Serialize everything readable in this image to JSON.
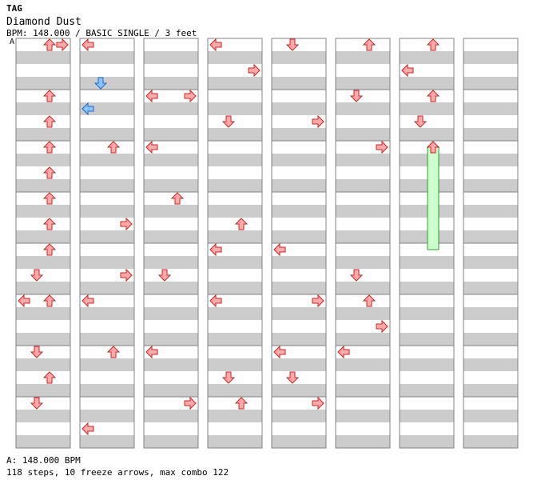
{
  "header": {
    "tag": "TAG",
    "song_title": "Diamond Dust",
    "info": "BPM: 148.000 / BASIC SINGLE / 3 feet",
    "bpm_marker": "A"
  },
  "footer": {
    "bpm_line": "A: 148.000 BPM",
    "stats": "118 steps, 10 freeze arrows, max combo 122"
  },
  "colors": {
    "band": "#cccccc",
    "arrow_red": "#ffaaaa",
    "arrow_red_stroke": "#cc2222",
    "arrow_blue": "#88c4ff",
    "arrow_blue_stroke": "#2266cc",
    "freeze_fill": "#ccffcc",
    "freeze_stroke": "#339933"
  },
  "chart_data": {
    "type": "step-chart",
    "unit": "beats (1 beat = one row band, 8 beats per column)",
    "lanes": [
      "left",
      "down",
      "up",
      "right"
    ],
    "columns": 7,
    "beats_per_column": 8,
    "notes": [
      {
        "col": 0,
        "beat": 0,
        "dir": "up",
        "kind": "step"
      },
      {
        "col": 0,
        "beat": 0,
        "dir": "right",
        "kind": "step"
      },
      {
        "col": 0,
        "beat": 1,
        "dir": "up",
        "kind": "step"
      },
      {
        "col": 0,
        "beat": 1.5,
        "dir": "up",
        "kind": "step"
      },
      {
        "col": 0,
        "beat": 2,
        "dir": "up",
        "kind": "step"
      },
      {
        "col": 0,
        "beat": 2.5,
        "dir": "up",
        "kind": "step"
      },
      {
        "col": 0,
        "beat": 3,
        "dir": "up",
        "kind": "step"
      },
      {
        "col": 0,
        "beat": 3.5,
        "dir": "up",
        "kind": "step"
      },
      {
        "col": 0,
        "beat": 4,
        "dir": "up",
        "kind": "step"
      },
      {
        "col": 0,
        "beat": 4.5,
        "dir": "down",
        "kind": "step"
      },
      {
        "col": 0,
        "beat": 5,
        "dir": "left",
        "kind": "step"
      },
      {
        "col": 0,
        "beat": 5,
        "dir": "up",
        "kind": "step"
      },
      {
        "col": 0,
        "beat": 6,
        "dir": "down",
        "kind": "step"
      },
      {
        "col": 0,
        "beat": 6.5,
        "dir": "up",
        "kind": "step"
      },
      {
        "col": 0,
        "beat": 7,
        "dir": "down",
        "kind": "step"
      },
      {
        "col": 1,
        "beat": 0,
        "dir": "left",
        "kind": "step"
      },
      {
        "col": 1,
        "beat": 0.75,
        "dir": "down",
        "kind": "step"
      },
      {
        "col": 1,
        "beat": 1.25,
        "dir": "left",
        "kind": "step"
      },
      {
        "col": 1,
        "beat": 2,
        "dir": "up",
        "kind": "step"
      },
      {
        "col": 1,
        "beat": 3.5,
        "dir": "right",
        "kind": "step"
      },
      {
        "col": 1,
        "beat": 4.5,
        "dir": "right",
        "kind": "step"
      },
      {
        "col": 1,
        "beat": 5,
        "dir": "left",
        "kind": "step"
      },
      {
        "col": 1,
        "beat": 6,
        "dir": "up",
        "kind": "step"
      },
      {
        "col": 1,
        "beat": 7.5,
        "dir": "left",
        "kind": "step"
      },
      {
        "col": 2,
        "beat": 1,
        "dir": "left",
        "kind": "step"
      },
      {
        "col": 2,
        "beat": 1,
        "dir": "right",
        "kind": "step"
      },
      {
        "col": 2,
        "beat": 2,
        "dir": "left",
        "kind": "step"
      },
      {
        "col": 2,
        "beat": 3,
        "dir": "up",
        "kind": "step"
      },
      {
        "col": 2,
        "beat": 4.5,
        "dir": "down",
        "kind": "step"
      },
      {
        "col": 2,
        "beat": 6,
        "dir": "left",
        "kind": "step"
      },
      {
        "col": 2,
        "beat": 7,
        "dir": "right",
        "kind": "step"
      },
      {
        "col": 3,
        "beat": 0,
        "dir": "left",
        "kind": "step"
      },
      {
        "col": 3,
        "beat": 0.5,
        "dir": "right",
        "kind": "step"
      },
      {
        "col": 3,
        "beat": 1.5,
        "dir": "down",
        "kind": "step"
      },
      {
        "col": 3,
        "beat": 3.5,
        "dir": "up",
        "kind": "step"
      },
      {
        "col": 3,
        "beat": 4,
        "dir": "left",
        "kind": "step"
      },
      {
        "col": 3,
        "beat": 5,
        "dir": "left",
        "kind": "step"
      },
      {
        "col": 3,
        "beat": 6.5,
        "dir": "down",
        "kind": "step"
      },
      {
        "col": 3,
        "beat": 7,
        "dir": "up",
        "kind": "step"
      },
      {
        "col": 4,
        "beat": 0,
        "dir": "down",
        "kind": "step"
      },
      {
        "col": 4,
        "beat": 1.5,
        "dir": "right",
        "kind": "step"
      },
      {
        "col": 4,
        "beat": 4,
        "dir": "left",
        "kind": "step"
      },
      {
        "col": 4,
        "beat": 5,
        "dir": "right",
        "kind": "step"
      },
      {
        "col": 4,
        "beat": 6,
        "dir": "left",
        "kind": "step"
      },
      {
        "col": 4,
        "beat": 6.5,
        "dir": "down",
        "kind": "step"
      },
      {
        "col": 4,
        "beat": 7,
        "dir": "right",
        "kind": "step"
      },
      {
        "col": 5,
        "beat": 0,
        "dir": "up",
        "kind": "step"
      },
      {
        "col": 5,
        "beat": 1,
        "dir": "down",
        "kind": "step"
      },
      {
        "col": 5,
        "beat": 2,
        "dir": "right",
        "kind": "step"
      },
      {
        "col": 5,
        "beat": 4.5,
        "dir": "down",
        "kind": "step"
      },
      {
        "col": 5,
        "beat": 5,
        "dir": "up",
        "kind": "step"
      },
      {
        "col": 5,
        "beat": 5.5,
        "dir": "right",
        "kind": "step"
      },
      {
        "col": 5,
        "beat": 6,
        "dir": "left",
        "kind": "step"
      },
      {
        "col": 6,
        "beat": 0,
        "dir": "up",
        "kind": "step"
      },
      {
        "col": 6,
        "beat": 0.5,
        "dir": "left",
        "kind": "step"
      },
      {
        "col": 6,
        "beat": 1,
        "dir": "up",
        "kind": "step"
      },
      {
        "col": 6,
        "beat": 1.5,
        "dir": "down",
        "kind": "step"
      },
      {
        "col": 6,
        "beat": 2,
        "dir": "up",
        "kind": "step"
      },
      {
        "col": 6,
        "beat": 2,
        "dir": "up",
        "kind": "freeze",
        "len": 2
      }
    ]
  }
}
